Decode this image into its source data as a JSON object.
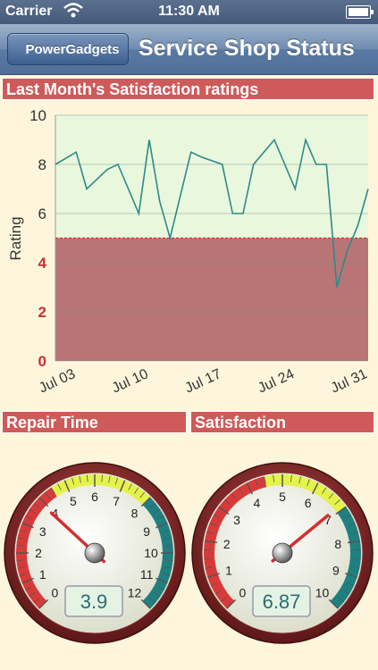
{
  "status_bar": {
    "carrier": "Carrier",
    "time": "11:30 AM"
  },
  "nav": {
    "back_label": "PowerGadgets",
    "title": "Service Shop Status"
  },
  "colors": {
    "header": "#cf5a5a",
    "below_threshold": "#b97575",
    "above_threshold": "#e9f8dc",
    "line": "#2d8a8a",
    "threshold_line": "#d43030"
  },
  "sections": {
    "chart": "Last Month's Satisfaction ratings",
    "repair": "Repair Time",
    "satisfaction": "Satisfaction"
  },
  "chart_data": {
    "type": "line",
    "title": "Last Month's Satisfaction ratings",
    "ylabel": "Rating",
    "ylim": [
      0,
      10
    ],
    "yticks": [
      "0",
      "2",
      "4",
      "6",
      "8",
      "10"
    ],
    "xticks": [
      {
        "label": "Jul 03",
        "day": 3
      },
      {
        "label": "Jul 10",
        "day": 10
      },
      {
        "label": "Jul 17",
        "day": 17
      },
      {
        "label": "Jul 24",
        "day": 24
      },
      {
        "label": "Jul 31",
        "day": 31
      }
    ],
    "xlim": [
      1,
      31
    ],
    "threshold": 5,
    "series": [
      {
        "x": [
          1,
          3,
          4,
          6,
          7,
          9,
          10,
          11,
          12,
          14,
          15,
          17,
          18,
          19,
          20,
          22,
          24,
          25,
          26,
          27,
          28,
          29,
          30,
          31
        ],
        "values": [
          8,
          8.5,
          7,
          7.8,
          8,
          6,
          9,
          6.5,
          5,
          8.5,
          8.3,
          8,
          6,
          6,
          8,
          9,
          7,
          9,
          8,
          8,
          3,
          4.5,
          5.5,
          7
        ]
      }
    ]
  },
  "gauges": {
    "repair": {
      "ticks": [
        "0",
        "1",
        "2",
        "3",
        "4",
        "5",
        "6",
        "7",
        "8",
        "9",
        "10",
        "11",
        "12"
      ],
      "value": 3.9,
      "readout": "3.9",
      "min": 0,
      "max": 12,
      "red_to": 4.5,
      "yellow_to": 8
    },
    "satisfaction": {
      "ticks": [
        "0",
        "1",
        "2",
        "3",
        "4",
        "5",
        "6",
        "7",
        "8",
        "9",
        "10"
      ],
      "value": 6.87,
      "readout": "6.87",
      "min": 0,
      "max": 10,
      "red_to": 4.5,
      "yellow_to": 7
    }
  }
}
